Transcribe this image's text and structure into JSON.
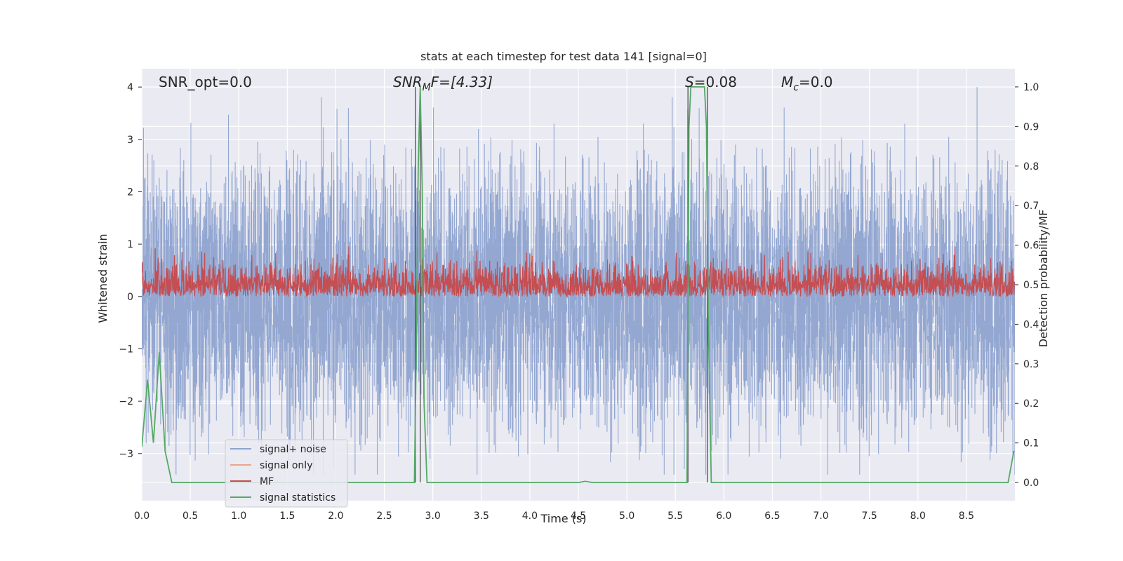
{
  "chart_data": {
    "type": "line",
    "title": "stats at each timestep for test data 141 [signal=0]",
    "xlabel": "Time (s)",
    "ylabel": "Whitened strain",
    "y2label": "Detection probability/MF",
    "xlim": [
      0.0,
      9.0
    ],
    "ylim": [
      -3.9,
      4.35
    ],
    "y2lim": [
      -0.046,
      1.046
    ],
    "x_ticks": [
      0.0,
      0.5,
      1.0,
      1.5,
      2.0,
      2.5,
      3.0,
      3.5,
      4.0,
      4.5,
      5.0,
      5.5,
      6.0,
      6.5,
      7.0,
      7.5,
      8.0,
      8.5
    ],
    "x_tick_labels": [
      "0.0",
      "0.5",
      "1.0",
      "1.5",
      "2.0",
      "2.5",
      "3.0",
      "3.5",
      "4.0",
      "4.5",
      "5.0",
      "5.5",
      "6.0",
      "6.5",
      "7.0",
      "7.5",
      "8.0",
      "8.5"
    ],
    "y_ticks": [
      -3,
      -2,
      -1,
      0,
      1,
      2,
      3,
      4
    ],
    "y_tick_labels": [
      "−3",
      "−2",
      "−1",
      "0",
      "1",
      "2",
      "3",
      "4"
    ],
    "y2_ticks": [
      0.0,
      0.1,
      0.2,
      0.3,
      0.4,
      0.5,
      0.6,
      0.7,
      0.8,
      0.9,
      1.0
    ],
    "y2_tick_labels": [
      "0.0",
      "0.1",
      "0.2",
      "0.3",
      "0.4",
      "0.5",
      "0.6",
      "0.7",
      "0.8",
      "0.9",
      "1.0"
    ],
    "grid": true,
    "legend_placement": "lower-left",
    "annotations": {
      "snr_opt": "SNR_opt=0.0",
      "snr_mf_main": "SNR",
      "snr_mf_sub": "M",
      "snr_mf_rest": "F=[4.33]",
      "s_main": "S",
      "s_rest": "=0.08",
      "mc_main": "M",
      "mc_sub": "c",
      "mc_rest": "=0.0"
    },
    "series": [
      {
        "name": "signal+ noise",
        "color": "#8ea3cf",
        "axis": "left",
        "style": "noise",
        "y_range": [
          -3.4,
          4.0
        ],
        "t_range": [
          0.0,
          9.0
        ]
      },
      {
        "name": "signal only",
        "color": "#e9a68a",
        "axis": "left",
        "values": []
      },
      {
        "name": "MF",
        "color": "#c44e52",
        "axis": "right",
        "style": "noise",
        "y_range": [
          0.47,
          0.6
        ],
        "t_range": [
          0.0,
          9.0
        ]
      },
      {
        "name": "signal statistics",
        "color": "#55a868",
        "axis": "right",
        "x": [
          0.0,
          0.06,
          0.12,
          0.18,
          0.24,
          0.31,
          0.5,
          1.0,
          2.0,
          2.81,
          2.83,
          2.85,
          2.87,
          2.89,
          2.91,
          2.94,
          3.0,
          4.0,
          4.5,
          4.57,
          4.65,
          5.0,
          5.62,
          5.64,
          5.66,
          5.7,
          5.75,
          5.8,
          5.82,
          5.84,
          5.87,
          6.0,
          7.0,
          8.0,
          8.93,
          8.99
        ],
        "values": [
          0.09,
          0.26,
          0.1,
          0.33,
          0.08,
          0.0,
          0.0,
          0.0,
          0.0,
          0.0,
          0.35,
          0.8,
          1.0,
          0.75,
          0.2,
          0.0,
          0.0,
          0.0,
          0.0,
          0.003,
          0.0,
          0.0,
          0.0,
          0.9,
          1.0,
          1.0,
          1.0,
          1.0,
          0.9,
          0.4,
          0.0,
          0.0,
          0.0,
          0.0,
          0.0,
          0.08
        ]
      }
    ],
    "vertical_markers": [
      {
        "color": "#4d4d4d",
        "x": [
          2.82,
          2.87,
          5.63,
          5.83
        ]
      }
    ]
  }
}
